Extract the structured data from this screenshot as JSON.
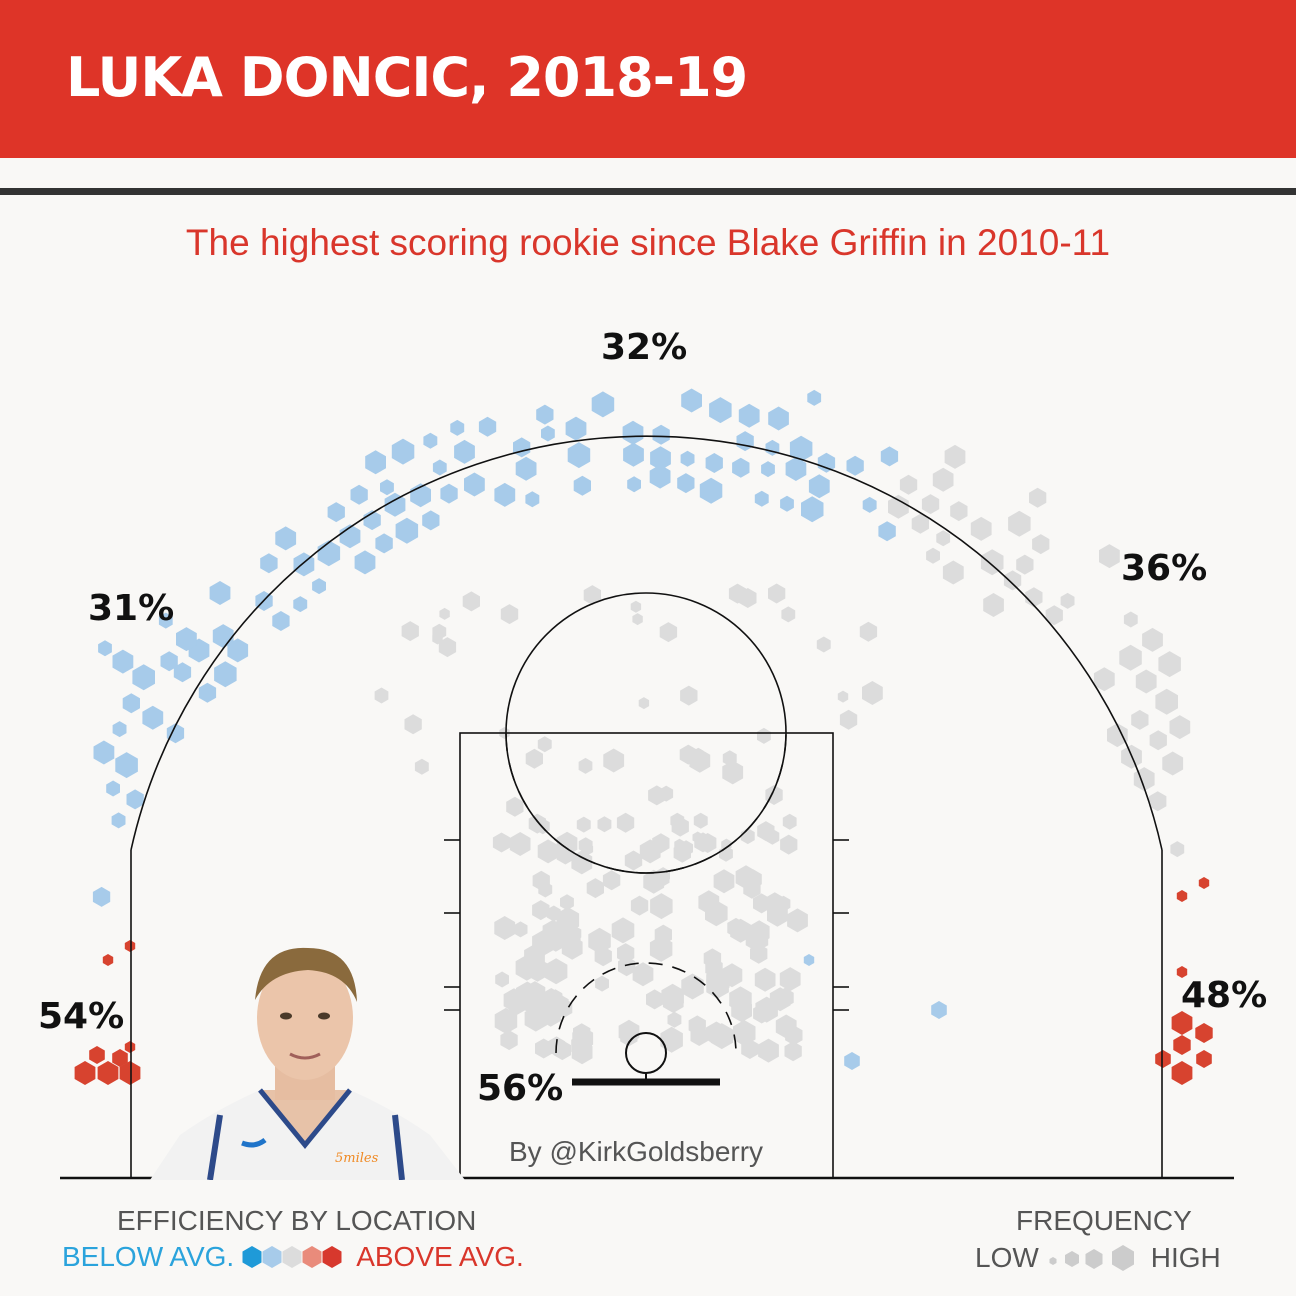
{
  "title": "LUKA DONCIC, 2018-19",
  "subtitle": "The highest scoring rookie since Blake Griffin in 2010-11",
  "credit": "By @KirkGoldsberry",
  "zones": {
    "top": "32%",
    "left_wing": "31%",
    "right_wing": "36%",
    "left_corner": "54%",
    "right_corner": "48%",
    "restricted": "56%"
  },
  "legend": {
    "efficiency_title": "EFFICIENCY BY LOCATION",
    "below": "BELOW AVG.",
    "above": "ABOVE AVG.",
    "frequency_title": "FREQUENCY",
    "low": "LOW",
    "high": "HIGH",
    "efficiency_colors": [
      "#1f9ad8",
      "#a7cbea",
      "#dcdcdc",
      "#e98b7b",
      "#d7382d"
    ]
  },
  "colors": {
    "banner": "#de3428",
    "below_avg": "#a7cbea",
    "average": "#dcdcdc",
    "above_avg": "#d7432f"
  },
  "chart_data": {
    "type": "scatter",
    "title": "LUKA DONCIC, 2018-19",
    "description_values": "Hexbin shot chart; zone field-goal percentages",
    "zones": [
      {
        "zone": "Above the break 3 (left)",
        "fg_pct": 31,
        "efficiency": "below"
      },
      {
        "zone": "Above the break 3 (top)",
        "fg_pct": 32,
        "efficiency": "below"
      },
      {
        "zone": "Above the break 3 (right)",
        "fg_pct": 36,
        "efficiency": "average"
      },
      {
        "zone": "Left corner 3",
        "fg_pct": 54,
        "efficiency": "above"
      },
      {
        "zone": "Right corner 3",
        "fg_pct": 48,
        "efficiency": "above"
      },
      {
        "zone": "Restricted area",
        "fg_pct": 56,
        "efficiency": "average"
      }
    ]
  }
}
